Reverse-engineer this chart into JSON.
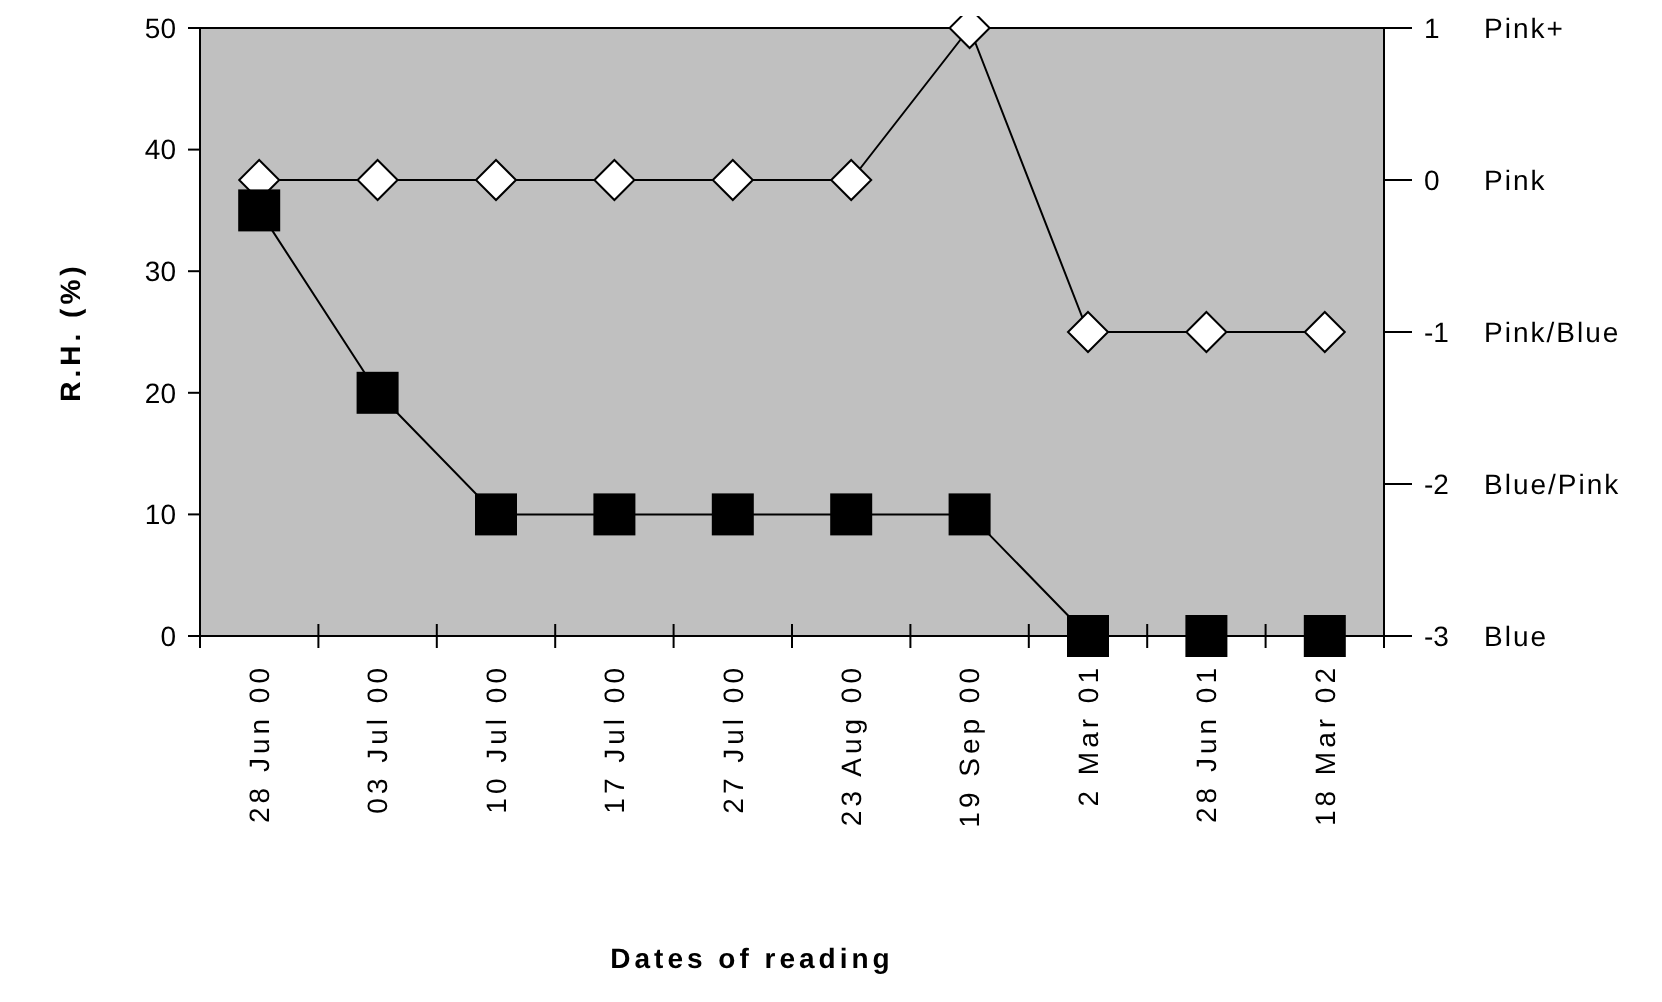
{
  "chart_data": {
    "type": "line",
    "xlabel": "Dates of reading",
    "ylabel": "R.H. (%)",
    "categories": [
      "28 Jun 00",
      "03 Jul 00",
      "10 Jul 00",
      "17 Jul 00",
      "27 Jul 00",
      "23 Aug 00",
      "19 Sep 00",
      "2 Mar 01",
      "28 Jun 01",
      "18 Mar 02"
    ],
    "series": [
      {
        "color": "#ffffff",
        "marker": "diamond",
        "axis": "y2",
        "values": [
          0,
          0,
          0,
          0,
          0,
          0,
          1,
          -1,
          -1,
          -1
        ]
      },
      {
        "color": "#000000",
        "marker": "square",
        "values": [
          35,
          20,
          10,
          10,
          10,
          10,
          10,
          0,
          0,
          0
        ]
      }
    ],
    "ylim": [
      0,
      50
    ],
    "yticks": [
      0,
      10,
      20,
      30,
      40,
      50
    ],
    "y2lim": [
      -3,
      1
    ],
    "y2ticks": [
      1,
      0,
      -1,
      -2,
      -3
    ],
    "annotations": [
      "Pink+",
      "Pink",
      "Pink/Blue",
      "Blue/Pink",
      "Blue"
    ],
    "grid": false,
    "line_style": "solid"
  }
}
